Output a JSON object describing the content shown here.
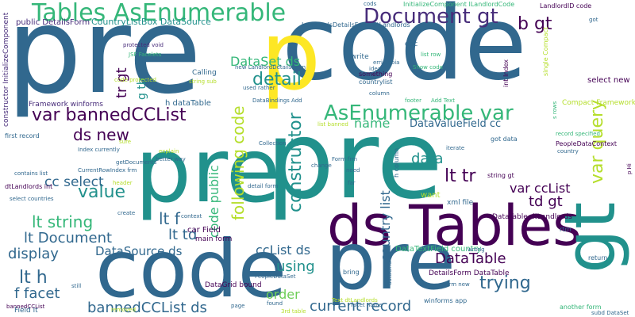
{
  "palette": {
    "navy": "#3b528b",
    "dark_purple": "#440154",
    "indigo": "#472c7a",
    "blue": "#31688e",
    "teal": "#21918c",
    "green": "#35b779",
    "light_green": "#6ece58",
    "lime": "#b5de2b",
    "yellow": "#fde725"
  },
  "words": {
    "pre_top": "pre",
    "code_top": "code",
    "pre_mid": "pre",
    "code_bottom": "code",
    "pre_bottom": "pre",
    "p_mid": "p",
    "p_p": "p p",
    "ds_tables": "ds Tables",
    "gt_right": "gt",
    "tables_asenumerable": "Tables AsEnumerable",
    "document_gt": "Document gt",
    "b_gt": "b gt",
    "asenumerable_var": "AsEnumerable var",
    "var_query": "var query",
    "var_bannedcclist": "var bannedCCList",
    "dataset_ds": "DataSet ds",
    "detail": "detail",
    "ds_new": "ds new",
    "value": "value",
    "lt_string": "lt string",
    "lt_document": "lt Document",
    "display": "display",
    "lt_h": "lt h",
    "f_facet": "f facet",
    "bannedcclist_ds": "bannedCCList ds",
    "current_record": "current record",
    "trying": "trying",
    "datatable": "DataTable",
    "datasource_ds": "DataSource ds",
    "cclist_ds": "ccList ds",
    "using": "using",
    "order": "order",
    "lt_tr": "lt tr",
    "var_cclist": "var ccList",
    "td_gt": "td gt",
    "data": "data",
    "cc_select": "cc select",
    "lt_f": "lt f",
    "lt_td": "lt td",
    "name": "name",
    "datavaluefield_cc": "DataValueField cc",
    "constructor": "constructor",
    "following_code": "following code",
    "code_public": "code public",
    "country_list": "country list",
    "tr_gt": "tr gt",
    "g_tb": "g tb",
    "countrylistbox_datasource": "CountryListBox DataSource",
    "public_detailsform": "public DetailsForm",
    "framework_winforms": "Framework winforms",
    "h_datatable": "h dataTable",
    "car_field": "car Field",
    "main_form": "main form",
    "datagrid_bound": "DataGrid bound",
    "datatextfield_country": "DataTextField country",
    "details_form_datatable": "DetailsForm DataTable",
    "datatable_dtlandlords": "DataTable dtLandlords",
    "peopledatacontext": "PeopleDataContext",
    "select_new": "select new",
    "compact_framework": "Compact Framework",
    "got_data": "got data",
    "string_gt": "string gt",
    "want": "want",
    "field_lt": "Field lt",
    "banneddcclist": "bannedCCList",
    "first_record": "first record",
    "dtlandlords_int": "dtLandlords int",
    "select_countries": "select countries",
    "constructor_initializecomponent": "constructor InitializeComponent",
    "landlordid_code": "LandlordID code",
    "landlordsdetailsform_dtlandlords": "LandlordsDetailsForm dtLandlords",
    "initializecomponent_ilandlordcode": "InitializeComponent ILandlordCode",
    "protected_void": "protected void",
    "jsf_facelets": "JSF Facelets",
    "calling": "Calling",
    "string_sub": "string sub",
    "list_row": "list row",
    "countrylist": "countrylist",
    "show_code": "Show code",
    "something": "something",
    "write": "write",
    "doc": "doc",
    "int_index": "int Index",
    "new_landlorddetailsform": "new LandlordDetailsForm",
    "databindings_add": "DataBindings Add",
    "index_currently": "Index currently",
    "currentrowindex_frm": "CurrentRowIndex frm",
    "explain": "explain",
    "better_way": "better way",
    "collection": "Collection",
    "detail_form": "detail form",
    "form_frm": "Form frm",
    "iterate": "iterate",
    "country": "country",
    "xml_file": "xml file",
    "rtrn": "rtrn",
    "column": "column",
    "footer": "footer",
    "add_text": "Add Text",
    "record_specified": "record specified",
    "another_form": "another form",
    "subd_dataset": "subd DataSet",
    "return": "return",
    "winforms_app": "winforms app",
    "found": "found",
    "facet_name": "facet name",
    "wrong": "wrong",
    "frm_new": "frm new",
    "removed": "removed",
    "contains_list": "contains list",
    "peopledataset": "PeopleDataSet",
    "bring": "bring",
    "page": "page",
    "create": "create",
    "context": "context",
    "header": "header",
    "sure": "sure",
    "getdocuments": "getDocuments",
    "need": "need",
    "far": "far",
    "cods": "cods",
    "code_protected": "code protected",
    "used_rather": "used rather",
    "errictobia": "errictobia",
    "ideas": "ideas",
    "h_column": "h column",
    "single_compact": "single Compact",
    "got": "got",
    "text_dtlandlords": "Text dtLandlords",
    "third_table": "3rd table",
    "still": "still",
    "h_hi": "p Hi",
    "datagrid": "dataGrid",
    "list_banned": "list banned",
    "change": "change",
    "s_rows": "s rows"
  }
}
